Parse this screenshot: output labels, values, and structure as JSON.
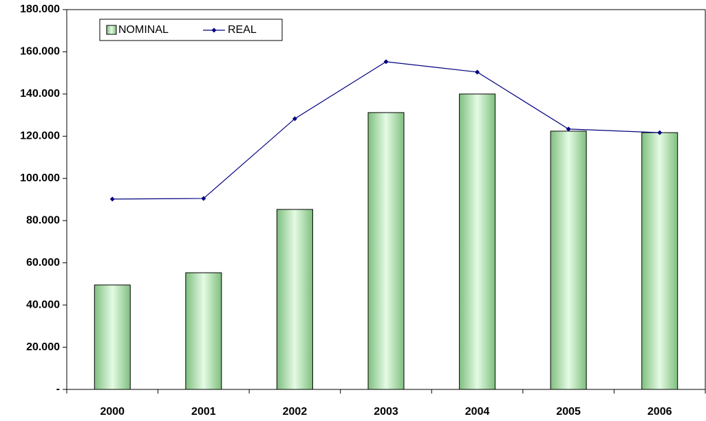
{
  "chart_data": {
    "type": "bar",
    "categories": [
      "2000",
      "2001",
      "2002",
      "2003",
      "2004",
      "2005",
      "2006"
    ],
    "series": [
      {
        "name": "NOMINAL",
        "type": "bar",
        "color": "#7fbf7f",
        "values": [
          49500,
          55300,
          85300,
          131200,
          140000,
          122400,
          121700
        ]
      },
      {
        "name": "REAL",
        "type": "line",
        "color": "#000080",
        "values": [
          90200,
          90500,
          128300,
          155300,
          150400,
          123400,
          121700
        ]
      }
    ],
    "ylim": [
      0,
      180000
    ],
    "yticks": [
      {
        "value": 0,
        "label": "-"
      },
      {
        "value": 20000,
        "label": "20.000"
      },
      {
        "value": 40000,
        "label": "40.000"
      },
      {
        "value": 60000,
        "label": "60.000"
      },
      {
        "value": 80000,
        "label": "80.000"
      },
      {
        "value": 100000,
        "label": "100.000"
      },
      {
        "value": 120000,
        "label": "120.000"
      },
      {
        "value": 140000,
        "label": "140.000"
      },
      {
        "value": 160000,
        "label": "160.000"
      },
      {
        "value": 180000,
        "label": "180.000"
      }
    ],
    "legend": "top-left"
  }
}
